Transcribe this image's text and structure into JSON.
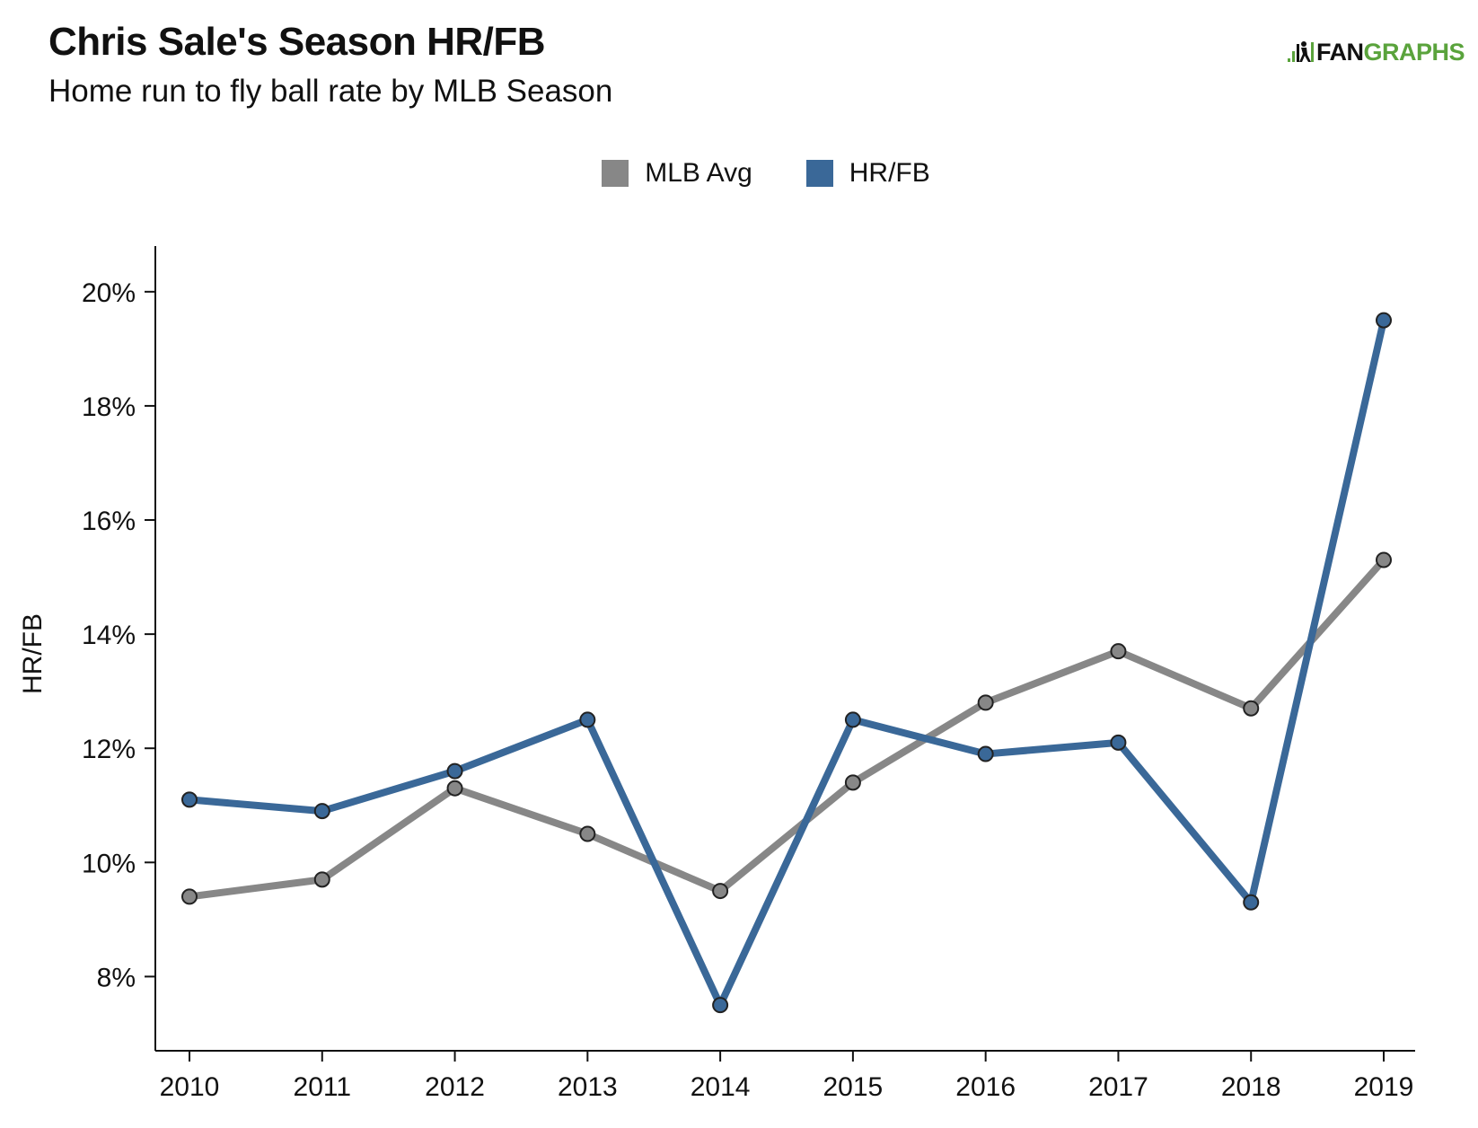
{
  "header": {
    "title": "Chris Sale's Season HR/FB",
    "subtitle": "Home run to fly ball rate by MLB Season"
  },
  "logo": {
    "text_fan": "FAN",
    "text_graphs": "GRAPHS",
    "icon": "fangraphs-logo-icon"
  },
  "colors": {
    "mlb_avg": "#878787",
    "hr_fb": "#3a6898",
    "logo_green": "#5aa33c",
    "axis": "#111111"
  },
  "legend": [
    {
      "label": "MLB Avg",
      "color": "#878787"
    },
    {
      "label": "HR/FB",
      "color": "#3a6898"
    }
  ],
  "chart_data": {
    "type": "line",
    "title": "Chris Sale's Season HR/FB",
    "subtitle": "Home run to fly ball rate by MLB Season",
    "xlabel": "",
    "ylabel": "HR/FB",
    "x": [
      "2010",
      "2011",
      "2012",
      "2013",
      "2014",
      "2015",
      "2016",
      "2017",
      "2018",
      "2019"
    ],
    "ylim": [
      6.7,
      20.8
    ],
    "yticks": [
      8,
      10,
      12,
      14,
      16,
      18,
      20
    ],
    "ytick_labels": [
      "8%",
      "10%",
      "12%",
      "14%",
      "16%",
      "18%",
      "20%"
    ],
    "legend_position": "top-center",
    "grid": false,
    "series": [
      {
        "name": "MLB Avg",
        "color": "#878787",
        "values": [
          9.4,
          9.7,
          11.3,
          10.5,
          9.5,
          11.4,
          12.8,
          13.7,
          12.7,
          15.3
        ]
      },
      {
        "name": "HR/FB",
        "color": "#3a6898",
        "values": [
          11.1,
          10.9,
          11.6,
          12.5,
          7.5,
          12.5,
          11.9,
          12.1,
          9.3,
          19.5
        ]
      }
    ]
  }
}
